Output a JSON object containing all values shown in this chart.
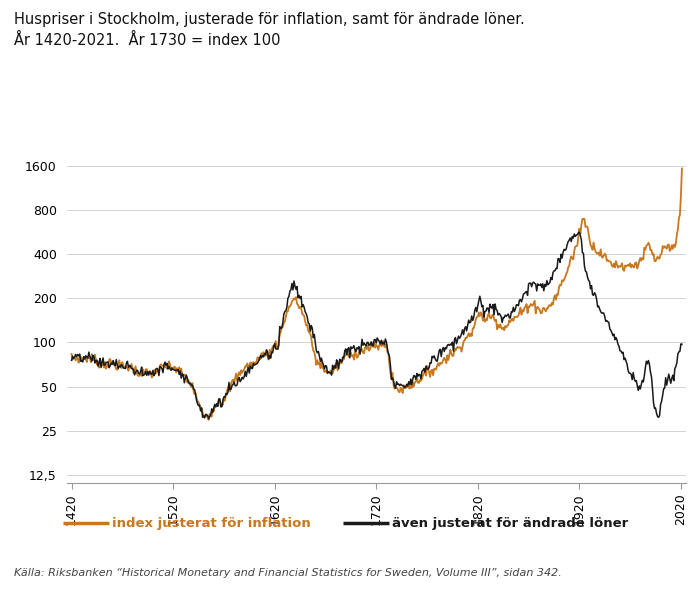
{
  "title_line1": "Huspriser i Stockholm, justerade för inflation, samt för ändrade löner.",
  "title_line2": "År 1420-2021.  År 1730 = index 100",
  "yticks": [
    12.5,
    25,
    50,
    100,
    200,
    400,
    800,
    1600
  ],
  "ytick_labels": [
    "12,5",
    "25",
    "50",
    "100",
    "200",
    "400",
    "800",
    "1600"
  ],
  "xticks": [
    1420,
    1520,
    1620,
    1720,
    1820,
    1920,
    2020
  ],
  "legend_orange": "index justerat för inflation",
  "legend_black": "även justerat för ändrade löner",
  "source": "Källa: Riksbanken “Historical Monetary and Financial Statistics for Sweden, Volume III”, sidan 342.",
  "color_orange": "#c8781e",
  "color_black": "#1a1a1a",
  "background": "#ffffff",
  "ylim": [
    11,
    2200
  ],
  "xlim": [
    1415,
    2025
  ]
}
